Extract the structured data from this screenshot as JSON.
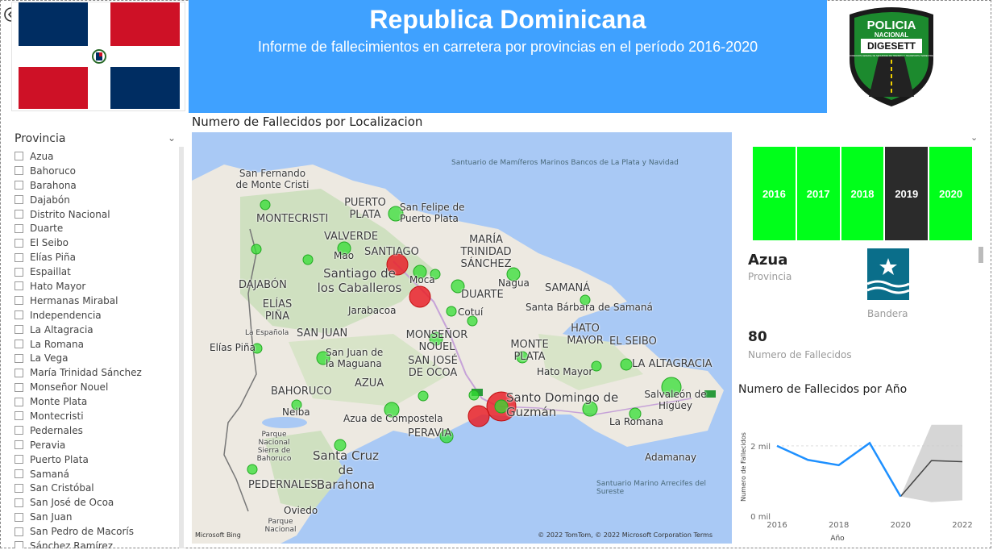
{
  "header": {
    "title": "Republica Dominicana",
    "subtitle": "Informe de fallecimientos en carretera por provincias en el período 2016-2020"
  },
  "police_logo": {
    "line1": "POLICIA",
    "line2": "NACIONAL",
    "line3": "DIGESETT",
    "small": "DIRECCION GENERAL DE SEGURIDAD DE TRANSITO Y TRANSPORTE TERRESTRE"
  },
  "colors": {
    "banner": "#3fa1ff",
    "year_on": "#00ff1a",
    "year_selected": "#2b2b2b",
    "bubble_green": "#33dd33",
    "bubble_red": "#e8222a",
    "line": "#1e90ff"
  },
  "slicer": {
    "header": "Provincia",
    "items": [
      "Azua",
      "Bahoruco",
      "Barahona",
      "Dajabón",
      "Distrito Nacional",
      "Duarte",
      "El Seibo",
      "Elías Piña",
      "Espaillat",
      "Hato Mayor",
      "Hermanas Mirabal",
      "Independencia",
      "La Altagracia",
      "La Romana",
      "La Vega",
      "María Trinidad Sánchez",
      "Monseñor Nouel",
      "Monte Plata",
      "Montecristi",
      "Pedernales",
      "Peravia",
      "Puerto Plata",
      "Samaná",
      "San Cristóbal",
      "San José de Ocoa",
      "San Juan",
      "San Pedro de Macorís",
      "Sánchez Ramírez"
    ]
  },
  "map": {
    "title": "Numero de Fallecidos por Localizacion",
    "labels": {
      "sea": "Santuario de Mamíferos Marinos Bancos de La Plata y Navidad",
      "sea2": "Santuario Marino Arrecifes del Sureste",
      "sfm": "San Fernando de Monte Cristi",
      "montecristi": "MONTECRISTI",
      "puerto_plata": "PUERTO PLATA",
      "sf_pp": "San Felipe de Puerto Plata",
      "valverde": "VALVERDE",
      "mao": "Mao",
      "santiago": "SANTIAGO",
      "santiago_city": "Santiago de los Caballeros",
      "maria_trinidad": "MARÍA TRINIDAD SÁNCHEZ",
      "moca": "Moca",
      "nagua": "Nagua",
      "dajabon": "DAJABÓN",
      "elias_pina": "ELÍAS PIÑA",
      "jarabacoa": "Jarabacoa",
      "duarte": "DUARTE",
      "samana": "SAMANÁ",
      "cotui": "Cotuí",
      "sb_samana": "Santa Bárbara de Samaná",
      "espanola": "La Española",
      "san_juan": "SAN JUAN",
      "monsenor": "MONSEÑOR NOUEL",
      "hato_mayor": "HATO MAYOR",
      "el_seibo": "EL SEIBO",
      "monte_plata": "MONTE PLATA",
      "elias_pina_city": "Elías Piña",
      "sj_maguana": "San Juan de la Maguana",
      "san_jose_ocoa": "SAN JOSÉ DE OCOA",
      "hato_mayor_city": "Hato Mayor",
      "la_altagracia": "LA ALTAGRACIA",
      "azua": "AZUA",
      "bahoruco": "BAHORUCO",
      "santo_domingo": "Santo Domingo de Guzmán",
      "salvaleon": "Salvaleón de Higüey",
      "neiba": "Neiba",
      "azua_compostela": "Azua de Compostela",
      "la_romana": "La Romana",
      "parque": "Parque Nacional Sierra de Bahoruco",
      "peravia": "PERAVIA",
      "santa_cruz": "Santa Cruz de Barahona",
      "adamanay": "Adamanay",
      "pedernales": "PEDERNALES",
      "oviedo": "Oviedo",
      "parque2": "Parque Nacional",
      "copyright": "© 2022 TomTom, © 2022 Microsoft Corporation  Terms",
      "bing": "Microsoft Bing"
    }
  },
  "years": [
    "2016",
    "2017",
    "2018",
    "2019",
    "2020"
  ],
  "selected_year": "2019",
  "card": {
    "province": "Azua",
    "province_label": "Provincia",
    "flag_label": "Bandera",
    "deaths": "80",
    "deaths_label": "Numero de Fallecidos"
  },
  "chart_data": {
    "type": "line",
    "title": "Numero de Fallecidos por Año",
    "xlabel": "Año",
    "ylabel": "Numero de Fallecidos",
    "x": [
      2016,
      2017,
      2018,
      2019,
      2020
    ],
    "values": [
      2000,
      1600,
      1450,
      2080,
      560
    ],
    "forecast": {
      "x": [
        2020,
        2021,
        2022
      ],
      "values": [
        560,
        1580,
        1550
      ],
      "upper": [
        560,
        2600,
        2600
      ],
      "lower": [
        560,
        400,
        450
      ]
    },
    "xticks": [
      "2016",
      "2018",
      "2020",
      "2022"
    ],
    "yticks": [
      "0 mil",
      "2 mil"
    ],
    "xlim": [
      2016,
      2022
    ],
    "ylim": [
      0,
      2800
    ]
  }
}
